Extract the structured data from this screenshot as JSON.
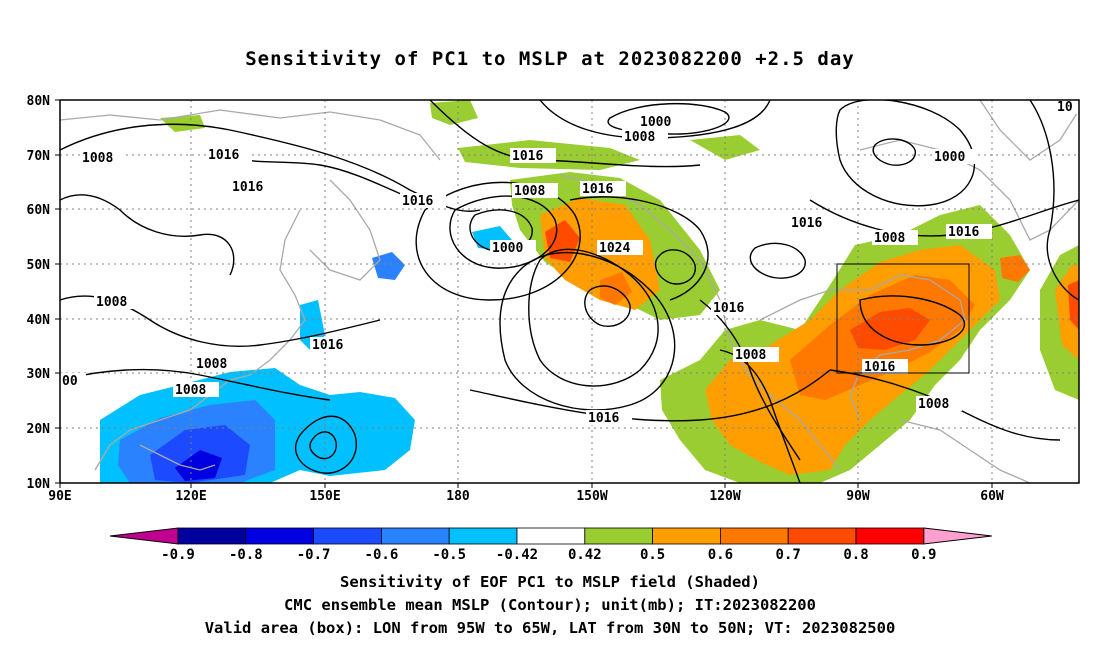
{
  "title": "Sensitivity of PC1 to MSLP at 2023082200 +2.5 day",
  "axes": {
    "lat_labels": [
      "80N",
      "70N",
      "60N",
      "50N",
      "40N",
      "30N",
      "20N",
      "10N"
    ],
    "lon_labels": [
      "90E",
      "120E",
      "150E",
      "180",
      "150W",
      "120W",
      "90W",
      "60W"
    ]
  },
  "colorbar": {
    "tick_labels": [
      "-0.9",
      "-0.8",
      "-0.7",
      "-0.6",
      "-0.5",
      "-0.42",
      "0.42",
      "0.5",
      "0.6",
      "0.7",
      "0.8",
      "0.9"
    ],
    "colors": [
      "#c0008f",
      "#00009f",
      "#0000e0",
      "#1c4bff",
      "#2b82ff",
      "#00c0ff",
      "#ffffff",
      "#9acd32",
      "#ff9e00",
      "#ff7800",
      "#ff4b00",
      "#ff0000",
      "#ff9fcf"
    ]
  },
  "contour_labels": [
    "1000",
    "1008",
    "1016",
    "1024",
    "10",
    "00"
  ],
  "valid_box": {
    "lon_from": "95W",
    "lon_to": "65W",
    "lat_from": "30N",
    "lat_to": "50N"
  },
  "caption": {
    "line1": "Sensitivity of EOF PC1 to MSLP field (Shaded)",
    "line2": "CMC ensemble mean MSLP (Contour); unit(mb); IT:2023082200",
    "line3": "Valid area (box): LON from 95W to 65W, LAT from 30N to 50N; VT: 2023082500"
  },
  "field_colors": {
    "green": "#9acd32",
    "orange": "#ff9e00",
    "dark_orange": "#ff7800",
    "red_orange": "#ff4b00",
    "cyan": "#00c0ff",
    "light_blue": "#2b82ff",
    "blue": "#1c4bff",
    "dark_blue": "#0000e0",
    "contour": "#000000",
    "coast": "#a9a9a9",
    "grid": "#808080"
  }
}
